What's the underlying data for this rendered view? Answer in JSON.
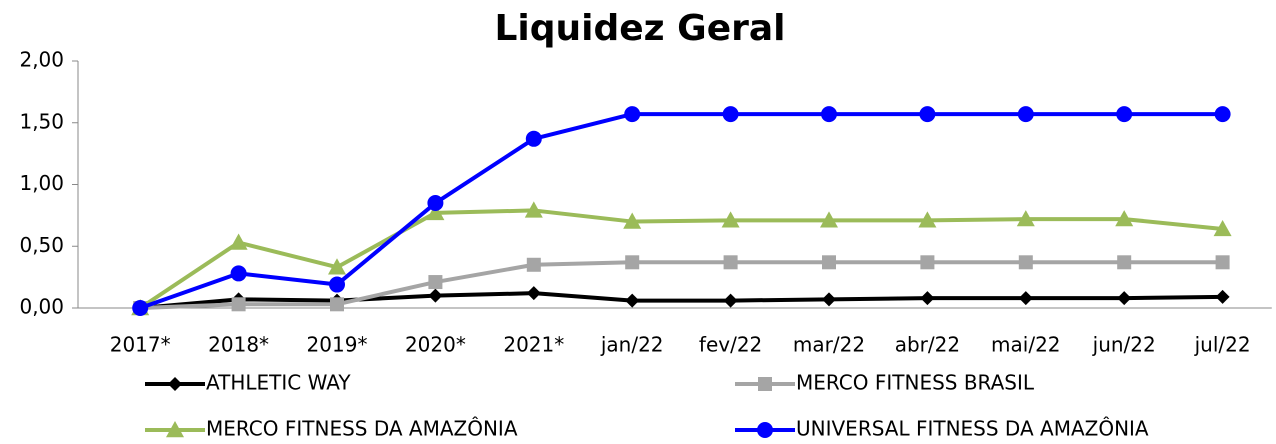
{
  "chart_data": {
    "type": "line",
    "title": "Liquidez Geral",
    "categories": [
      "2017*",
      "2018*",
      "2019*",
      "2020*",
      "2021*",
      "jan/22",
      "fev/22",
      "mar/22",
      "abr/22",
      "mai/22",
      "jun/22",
      "jul/22"
    ],
    "series": [
      {
        "name": "ATHLETIC WAY",
        "color": "#000000",
        "marker": "diamond",
        "values": [
          0,
          0.07,
          0.06,
          0.1,
          0.12,
          0.06,
          0.06,
          0.07,
          0.08,
          0.08,
          0.08,
          0.09
        ]
      },
      {
        "name": "MERCO FITNESS BRASIL",
        "color": "#a5a5a5",
        "marker": "square",
        "values": [
          0,
          0.03,
          0.03,
          0.21,
          0.35,
          0.37,
          0.37,
          0.37,
          0.37,
          0.37,
          0.37,
          0.37
        ]
      },
      {
        "name": "MERCO FITNESS DA AMAZÔNIA",
        "color": "#9bbb59",
        "marker": "triangle",
        "values": [
          0,
          0.53,
          0.33,
          0.77,
          0.79,
          0.7,
          0.71,
          0.71,
          0.71,
          0.72,
          0.72,
          0.64
        ]
      },
      {
        "name": "UNIVERSAL FITNESS DA AMAZÔNIA",
        "color": "#0000ff",
        "marker": "circle",
        "values": [
          0,
          0.28,
          0.19,
          0.85,
          1.37,
          1.57,
          1.57,
          1.57,
          1.57,
          1.57,
          1.57,
          1.57
        ]
      }
    ],
    "ylim": [
      0,
      2
    ],
    "yticks": [
      {
        "value": 0,
        "label": "0,00"
      },
      {
        "value": 0.5,
        "label": "0,50"
      },
      {
        "value": 1,
        "label": "1,00"
      },
      {
        "value": 1.5,
        "label": "1,50"
      },
      {
        "value": 2,
        "label": "2,00"
      }
    ],
    "grid": false,
    "legend": "bottom"
  }
}
